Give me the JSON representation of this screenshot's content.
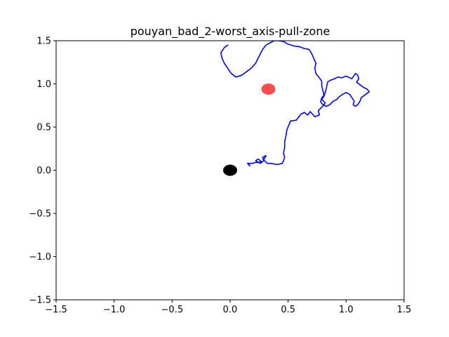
{
  "chart_data": {
    "type": "line",
    "title": "pouyan_bad_2-worst_axis-pull-zone",
    "xlabel": "",
    "ylabel": "",
    "xlim": [
      -1.5,
      1.5
    ],
    "ylim": [
      -1.5,
      1.5
    ],
    "x_ticks": [
      "−1.5",
      "−1.0",
      "−0.5",
      "0.0",
      "0.5",
      "1.0",
      "1.5"
    ],
    "y_ticks": [
      "−1.5",
      "−1.0",
      "−0.5",
      "0.0",
      "0.5",
      "1.0",
      "1.5"
    ],
    "x_tick_values": [
      -1.5,
      -1.0,
      -0.5,
      0.0,
      0.5,
      1.0,
      1.5
    ],
    "y_tick_values": [
      -1.5,
      -1.0,
      -0.5,
      0.0,
      0.5,
      1.0,
      1.5
    ],
    "grid": false,
    "legend": "none",
    "series": [
      {
        "color": "#0000ff",
        "points": [
          [
            0.16,
            0.07
          ],
          [
            0.17,
            0.05
          ],
          [
            0.15,
            0.08
          ],
          [
            0.19,
            0.08
          ],
          [
            0.22,
            0.09
          ],
          [
            0.25,
            0.09
          ],
          [
            0.27,
            0.1
          ],
          [
            0.24,
            0.13
          ],
          [
            0.22,
            0.11
          ],
          [
            0.26,
            0.08
          ],
          [
            0.29,
            0.11
          ],
          [
            0.28,
            0.15
          ],
          [
            0.31,
            0.17
          ],
          [
            0.29,
            0.12
          ],
          [
            0.32,
            0.08
          ],
          [
            0.35,
            0.08
          ],
          [
            0.39,
            0.07
          ],
          [
            0.42,
            0.07
          ],
          [
            0.45,
            0.08
          ],
          [
            0.46,
            0.11
          ],
          [
            0.47,
            0.15
          ],
          [
            0.46,
            0.2
          ],
          [
            0.47,
            0.26
          ],
          [
            0.47,
            0.33
          ],
          [
            0.48,
            0.39
          ],
          [
            0.49,
            0.47
          ],
          [
            0.52,
            0.57
          ],
          [
            0.57,
            0.58
          ],
          [
            0.61,
            0.65
          ],
          [
            0.64,
            0.67
          ],
          [
            0.67,
            0.64
          ],
          [
            0.69,
            0.68
          ],
          [
            0.73,
            0.62
          ],
          [
            0.77,
            0.64
          ],
          [
            0.76,
            0.69
          ],
          [
            0.79,
            0.73
          ],
          [
            0.82,
            0.78
          ],
          [
            0.79,
            0.82
          ],
          [
            0.81,
            0.86
          ],
          [
            0.82,
            0.9
          ],
          [
            0.83,
            0.95
          ],
          [
            0.84,
            1.02
          ],
          [
            0.86,
            1.04
          ],
          [
            0.9,
            1.06
          ],
          [
            0.93,
            1.08
          ],
          [
            0.96,
            1.07
          ],
          [
            1.0,
            1.09
          ],
          [
            1.05,
            1.06
          ],
          [
            1.08,
            1.12
          ],
          [
            1.1,
            1.1
          ],
          [
            1.11,
            1.06
          ],
          [
            1.09,
            1.02
          ],
          [
            1.12,
            0.99
          ],
          [
            1.15,
            0.96
          ],
          [
            1.18,
            0.94
          ],
          [
            1.2,
            0.91
          ],
          [
            1.17,
            0.88
          ],
          [
            1.13,
            0.84
          ],
          [
            1.12,
            0.8
          ],
          [
            1.1,
            0.76
          ],
          [
            1.08,
            0.74
          ],
          [
            1.06,
            0.76
          ],
          [
            1.07,
            0.8
          ],
          [
            1.05,
            0.84
          ],
          [
            1.03,
            0.88
          ],
          [
            1.0,
            0.9
          ],
          [
            0.97,
            0.88
          ],
          [
            0.94,
            0.85
          ],
          [
            0.92,
            0.82
          ],
          [
            0.89,
            0.8
          ],
          [
            0.86,
            0.76
          ],
          [
            0.83,
            0.74
          ],
          [
            0.8,
            0.76
          ],
          [
            0.78,
            0.79
          ],
          [
            0.79,
            0.84
          ],
          [
            0.81,
            0.87
          ],
          [
            0.8,
            0.92
          ],
          [
            0.79,
            0.98
          ],
          [
            0.79,
            1.03
          ],
          [
            0.77,
            1.07
          ],
          [
            0.74,
            1.12
          ],
          [
            0.73,
            1.18
          ],
          [
            0.74,
            1.24
          ],
          [
            0.72,
            1.3
          ],
          [
            0.7,
            1.36
          ],
          [
            0.68,
            1.4
          ],
          [
            0.64,
            1.41
          ],
          [
            0.6,
            1.43
          ],
          [
            0.55,
            1.44
          ],
          [
            0.5,
            1.46
          ],
          [
            0.46,
            1.49
          ],
          [
            0.42,
            1.5
          ],
          [
            0.38,
            1.5
          ],
          [
            0.35,
            1.48
          ],
          [
            0.31,
            1.45
          ],
          [
            0.28,
            1.4
          ],
          [
            0.25,
            1.32
          ],
          [
            0.22,
            1.24
          ],
          [
            0.18,
            1.18
          ],
          [
            0.14,
            1.14
          ],
          [
            0.1,
            1.1
          ],
          [
            0.05,
            1.08
          ],
          [
            0.01,
            1.12
          ],
          [
            -0.02,
            1.18
          ],
          [
            -0.05,
            1.24
          ],
          [
            -0.07,
            1.3
          ],
          [
            -0.08,
            1.36
          ],
          [
            -0.05,
            1.42
          ],
          [
            -0.02,
            1.45
          ]
        ]
      }
    ],
    "markers": [
      {
        "name": "origin",
        "x": 0.0,
        "y": 0.0,
        "color": "#000000"
      },
      {
        "name": "target",
        "x": 0.33,
        "y": 0.94,
        "color": "#ff0000",
        "alpha": 0.7
      }
    ]
  },
  "figure": {
    "background": "#ffffff",
    "axes_color": "#000000"
  }
}
